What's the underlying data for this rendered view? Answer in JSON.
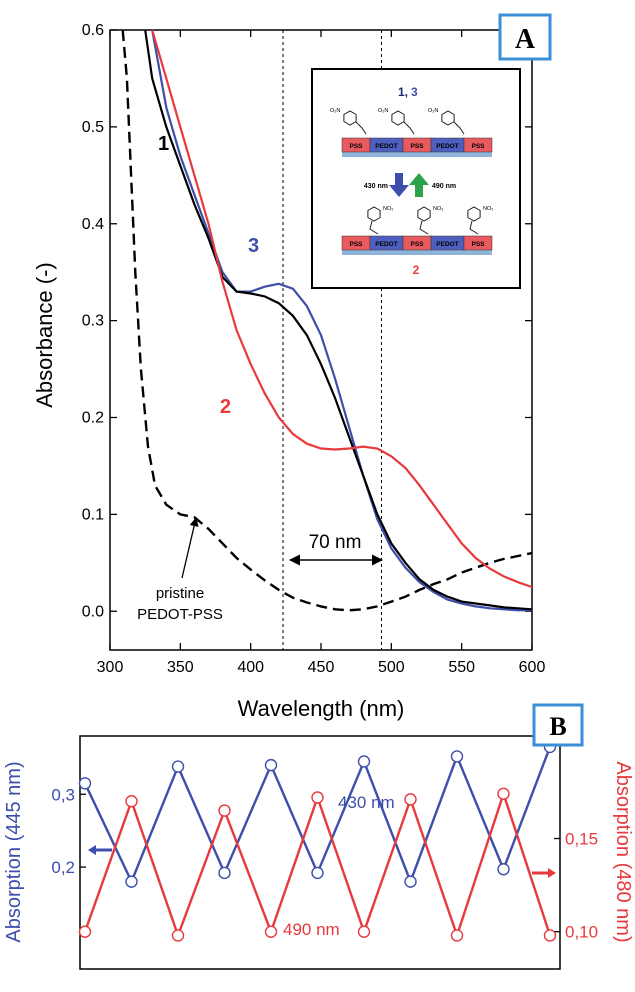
{
  "chart_data": [
    {
      "type": "line",
      "panel_label": "A",
      "xlabel": "Wavelength (nm)",
      "ylabel": "Absorbance (-)",
      "xlim": [
        300,
        600
      ],
      "ylim": [
        -0.04,
        0.6
      ],
      "x_ticks": [
        "300",
        "350",
        "400",
        "450",
        "500",
        "550",
        "600"
      ],
      "y_ticks": [
        "0.0",
        "0.1",
        "0.2",
        "0.3",
        "0.4",
        "0.5",
        "0.6"
      ],
      "grid": false,
      "series": [
        {
          "name": "1",
          "color": "#000000",
          "style": "solid",
          "points": [
            [
              325,
              0.6
            ],
            [
              330,
              0.55
            ],
            [
              340,
              0.5
            ],
            [
              350,
              0.46
            ],
            [
              360,
              0.42
            ],
            [
              370,
              0.385
            ],
            [
              380,
              0.345
            ],
            [
              390,
              0.33
            ],
            [
              400,
              0.328
            ],
            [
              410,
              0.325
            ],
            [
              420,
              0.318
            ],
            [
              430,
              0.305
            ],
            [
              440,
              0.285
            ],
            [
              450,
              0.255
            ],
            [
              460,
              0.22
            ],
            [
              470,
              0.18
            ],
            [
              480,
              0.14
            ],
            [
              490,
              0.1
            ],
            [
              500,
              0.07
            ],
            [
              510,
              0.05
            ],
            [
              520,
              0.033
            ],
            [
              530,
              0.022
            ],
            [
              540,
              0.015
            ],
            [
              550,
              0.01
            ],
            [
              560,
              0.008
            ],
            [
              570,
              0.006
            ],
            [
              580,
              0.004
            ],
            [
              590,
              0.003
            ],
            [
              600,
              0.002
            ]
          ]
        },
        {
          "name": "2",
          "color": "#e8393c",
          "style": "solid",
          "points": [
            [
              330,
              0.6
            ],
            [
              340,
              0.55
            ],
            [
              350,
              0.5
            ],
            [
              360,
              0.45
            ],
            [
              370,
              0.4
            ],
            [
              380,
              0.34
            ],
            [
              390,
              0.29
            ],
            [
              400,
              0.255
            ],
            [
              410,
              0.225
            ],
            [
              420,
              0.2
            ],
            [
              430,
              0.183
            ],
            [
              440,
              0.173
            ],
            [
              450,
              0.168
            ],
            [
              460,
              0.167
            ],
            [
              470,
              0.168
            ],
            [
              480,
              0.17
            ],
            [
              490,
              0.168
            ],
            [
              500,
              0.16
            ],
            [
              510,
              0.148
            ],
            [
              520,
              0.13
            ],
            [
              530,
              0.11
            ],
            [
              540,
              0.09
            ],
            [
              550,
              0.07
            ],
            [
              560,
              0.055
            ],
            [
              570,
              0.044
            ],
            [
              580,
              0.036
            ],
            [
              590,
              0.03
            ],
            [
              600,
              0.025
            ]
          ]
        },
        {
          "name": "3",
          "color": "#3d4eab",
          "style": "solid",
          "points": [
            [
              330,
              0.6
            ],
            [
              340,
              0.52
            ],
            [
              350,
              0.47
            ],
            [
              360,
              0.43
            ],
            [
              370,
              0.39
            ],
            [
              380,
              0.35
            ],
            [
              390,
              0.33
            ],
            [
              400,
              0.33
            ],
            [
              410,
              0.335
            ],
            [
              420,
              0.338
            ],
            [
              430,
              0.333
            ],
            [
              440,
              0.315
            ],
            [
              450,
              0.285
            ],
            [
              460,
              0.24
            ],
            [
              470,
              0.19
            ],
            [
              480,
              0.14
            ],
            [
              490,
              0.095
            ],
            [
              500,
              0.065
            ],
            [
              510,
              0.045
            ],
            [
              520,
              0.03
            ],
            [
              530,
              0.02
            ],
            [
              540,
              0.012
            ],
            [
              550,
              0.008
            ],
            [
              560,
              0.005
            ],
            [
              570,
              0.003
            ],
            [
              580,
              0.002
            ],
            [
              590,
              0.001
            ],
            [
              600,
              0.001
            ]
          ]
        },
        {
          "name": "pristine PEDOT-PSS",
          "color": "#000000",
          "style": "dashed",
          "points": [
            [
              309,
              0.6
            ],
            [
              312,
              0.55
            ],
            [
              315,
              0.45
            ],
            [
              318,
              0.35
            ],
            [
              322,
              0.25
            ],
            [
              327,
              0.17
            ],
            [
              332,
              0.13
            ],
            [
              340,
              0.11
            ],
            [
              350,
              0.1
            ],
            [
              360,
              0.097
            ],
            [
              370,
              0.085
            ],
            [
              380,
              0.07
            ],
            [
              390,
              0.055
            ],
            [
              400,
              0.043
            ],
            [
              410,
              0.032
            ],
            [
              420,
              0.022
            ],
            [
              430,
              0.014
            ],
            [
              440,
              0.009
            ],
            [
              450,
              0.005
            ],
            [
              460,
              0.002
            ],
            [
              470,
              0.001
            ],
            [
              480,
              0.002
            ],
            [
              490,
              0.005
            ],
            [
              500,
              0.01
            ],
            [
              510,
              0.015
            ],
            [
              520,
              0.022
            ],
            [
              530,
              0.028
            ],
            [
              540,
              0.033
            ],
            [
              550,
              0.04
            ],
            [
              560,
              0.045
            ],
            [
              570,
              0.05
            ],
            [
              580,
              0.054
            ],
            [
              590,
              0.057
            ],
            [
              600,
              0.06
            ]
          ]
        }
      ],
      "vlines": [
        423,
        493
      ],
      "annotations": {
        "curve1": "1",
        "curve2": "2",
        "curve3": "3",
        "gap": "70 nm",
        "pristine_line1": "pristine",
        "pristine_line2": "PEDOT-PSS"
      },
      "inset": {
        "title_a": "1,",
        "title_b": "3",
        "bottom_label": "2",
        "arrow_left_label": "430 nm",
        "arrow_right_label": "490 nm",
        "blocks_top": [
          "PSS",
          "PEDOT",
          "PSS",
          "PEDOT",
          "PSS"
        ],
        "blocks_bottom": [
          "PSS",
          "PEDOT",
          "PSS",
          "PEDOT",
          "PSS"
        ],
        "substituent_top": "O₂N",
        "substituent_bottom": "NO₂"
      }
    },
    {
      "type": "line",
      "panel_label": "B",
      "ylabel_left": "Absorption (445 nm)",
      "ylabel_right": "Absorption (480 nm)",
      "ylim_left": [
        0.06,
        0.38
      ],
      "ylim_right": [
        0.08,
        0.205
      ],
      "y_ticks_left": [
        "0,2",
        "0,3"
      ],
      "y_ticks_right": [
        "0,10",
        "0,15"
      ],
      "series": [
        {
          "name": "430 nm",
          "axis": "left",
          "color": "#3d4eab",
          "values": [
            0.315,
            0.18,
            0.338,
            0.192,
            0.34,
            0.192,
            0.345,
            0.18,
            0.352,
            0.197,
            0.365
          ]
        },
        {
          "name": "490 nm",
          "axis": "right",
          "color": "#e8393c",
          "values": [
            0.1,
            0.17,
            0.098,
            0.165,
            0.1,
            0.172,
            0.1,
            0.171,
            0.098,
            0.174,
            0.098
          ]
        }
      ]
    }
  ]
}
